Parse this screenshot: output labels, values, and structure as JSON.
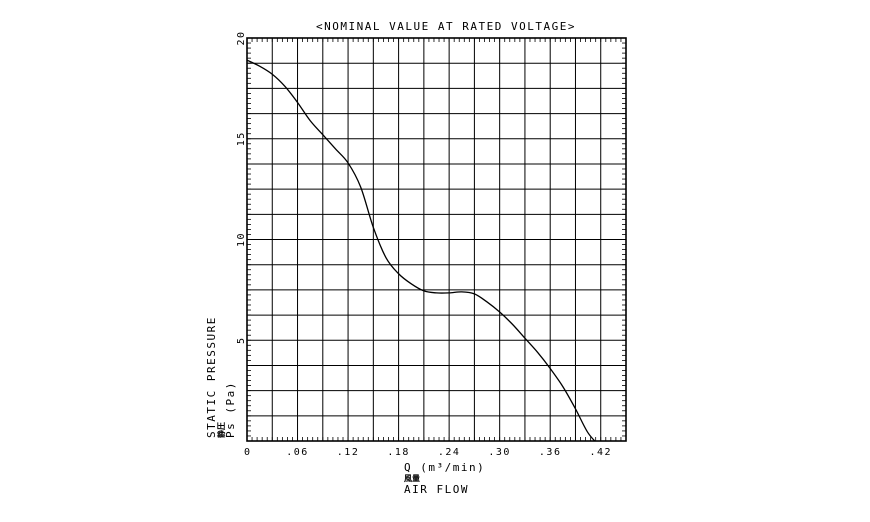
{
  "chart_data": {
    "type": "line",
    "title": "<NOMINAL VALUE AT RATED VOLTAGE>",
    "xlabel": {
      "symbol_line": "Q  (m³/min)",
      "jp": "風量",
      "en": "AIR FLOW"
    },
    "ylabel": {
      "en": "STATIC PRESSURE",
      "jp": "静圧",
      "symbol_line": "Ps  (Pa)"
    },
    "xlim": [
      0,
      0.45
    ],
    "ylim": [
      0,
      20
    ],
    "x_ticks": [
      {
        "value": 0,
        "label": "0"
      },
      {
        "value": 0.06,
        "label": ".06"
      },
      {
        "value": 0.12,
        "label": ".12"
      },
      {
        "value": 0.18,
        "label": ".18"
      },
      {
        "value": 0.24,
        "label": ".24"
      },
      {
        "value": 0.3,
        "label": ".30"
      },
      {
        "value": 0.36,
        "label": ".36"
      },
      {
        "value": 0.42,
        "label": ".42"
      }
    ],
    "y_ticks": [
      {
        "value": 5,
        "label": "5"
      },
      {
        "value": 10,
        "label": "10"
      },
      {
        "value": 15,
        "label": "15"
      },
      {
        "value": 20,
        "label": "20"
      }
    ],
    "grid": true,
    "x_grid_step": 0.03,
    "y_grid_step": 1.25,
    "series": [
      {
        "x": [
          0,
          0.015,
          0.03,
          0.045,
          0.06,
          0.075,
          0.09,
          0.105,
          0.12,
          0.135,
          0.15,
          0.165,
          0.18,
          0.195,
          0.21,
          0.225,
          0.24,
          0.255,
          0.27,
          0.285,
          0.3,
          0.315,
          0.33,
          0.345,
          0.36,
          0.375,
          0.39,
          0.405,
          0.42
        ],
        "y": [
          18.9,
          18.6,
          18.2,
          17.6,
          16.8,
          15.9,
          15.2,
          14.5,
          13.8,
          12.6,
          10.6,
          9.1,
          8.3,
          7.8,
          7.45,
          7.35,
          7.35,
          7.4,
          7.3,
          6.9,
          6.4,
          5.8,
          5.1,
          4.4,
          3.6,
          2.7,
          1.6,
          0.4,
          -0.3
        ]
      }
    ]
  }
}
